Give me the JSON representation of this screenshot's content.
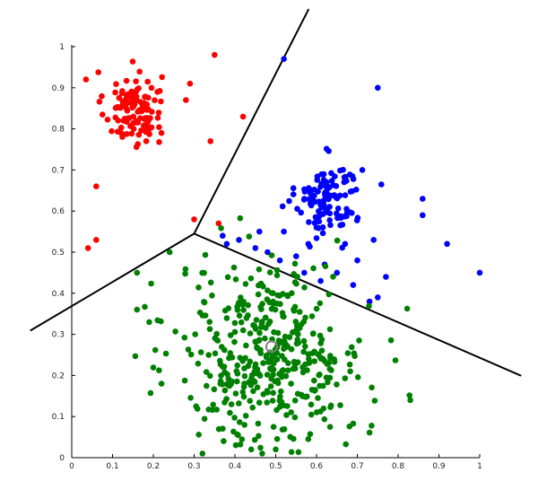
{
  "chart_data": {
    "type": "scatter",
    "title": "",
    "xlabel": "",
    "ylabel": "",
    "xlim": [
      0,
      1
    ],
    "ylim": [
      0,
      1
    ],
    "xticks": [
      "0",
      "0.1",
      "0.2",
      "0.3",
      "0.4",
      "0.5",
      "0.6",
      "0.7",
      "0.8",
      "0.9",
      "1"
    ],
    "yticks": [
      "0",
      "0.1",
      "0.2",
      "0.3",
      "0.4",
      "0.5",
      "0.6",
      "0.7",
      "0.8",
      "0.9",
      "1"
    ],
    "grid": false,
    "legend": "none",
    "boundary_lines": [
      {
        "x": [
          0.3,
          -0.1
        ],
        "y": [
          0.545,
          0.31
        ]
      },
      {
        "x": [
          0.3,
          0.58
        ],
        "y": [
          0.545,
          1.09
        ]
      },
      {
        "x": [
          0.3,
          1.1
        ],
        "y": [
          0.545,
          0.2
        ]
      }
    ],
    "marked_point": {
      "x": 0.49,
      "y": 0.27,
      "color": "#808080"
    },
    "clusters": [
      {
        "color": "#ff0000",
        "center": [
          0.15,
          0.85
        ],
        "spread": [
          0.035,
          0.045
        ],
        "count": 110,
        "outliers": [
          [
            0.35,
            0.98
          ],
          [
            0.29,
            0.91
          ],
          [
            0.28,
            0.87
          ],
          [
            0.34,
            0.77
          ],
          [
            0.42,
            0.83
          ],
          [
            0.3,
            0.58
          ],
          [
            0.06,
            0.53
          ],
          [
            0.04,
            0.51
          ],
          [
            0.035,
            0.92
          ],
          [
            0.06,
            0.66
          ],
          [
            0.36,
            0.57
          ],
          [
            0.22,
            0.79
          ],
          [
            0.21,
            0.89
          ]
        ]
      },
      {
        "color": "#0000ff",
        "center": [
          0.63,
          0.63
        ],
        "spread": [
          0.04,
          0.045
        ],
        "count": 120,
        "outliers": [
          [
            0.52,
            0.97
          ],
          [
            0.75,
            0.9
          ],
          [
            0.86,
            0.63
          ],
          [
            0.86,
            0.59
          ],
          [
            0.92,
            0.52
          ],
          [
            1.0,
            0.45
          ],
          [
            0.75,
            0.39
          ],
          [
            0.73,
            0.38
          ],
          [
            0.77,
            0.44
          ],
          [
            0.69,
            0.42
          ],
          [
            0.37,
            0.54
          ],
          [
            0.38,
            0.52
          ],
          [
            0.41,
            0.53
          ],
          [
            0.45,
            0.51
          ],
          [
            0.48,
            0.5
          ],
          [
            0.51,
            0.48
          ],
          [
            0.55,
            0.49
          ],
          [
            0.46,
            0.55
          ],
          [
            0.52,
            0.55
          ],
          [
            0.58,
            0.52
          ],
          [
            0.62,
            0.47
          ],
          [
            0.67,
            0.52
          ],
          [
            0.61,
            0.43
          ],
          [
            0.65,
            0.45
          ],
          [
            0.6,
            0.56
          ],
          [
            0.57,
            0.45
          ],
          [
            0.7,
            0.48
          ],
          [
            0.74,
            0.53
          ]
        ]
      },
      {
        "color": "#008000",
        "center": [
          0.49,
          0.25
        ],
        "spread": [
          0.115,
          0.11
        ],
        "count": 420,
        "outliers": [
          [
            0.16,
            0.36
          ],
          [
            0.16,
            0.45
          ],
          [
            0.24,
            0.5
          ],
          [
            0.83,
            0.14
          ],
          [
            0.44,
            0.02
          ],
          [
            0.5,
            0.02
          ],
          [
            0.19,
            0.33
          ],
          [
            0.22,
            0.18
          ]
        ]
      }
    ]
  }
}
